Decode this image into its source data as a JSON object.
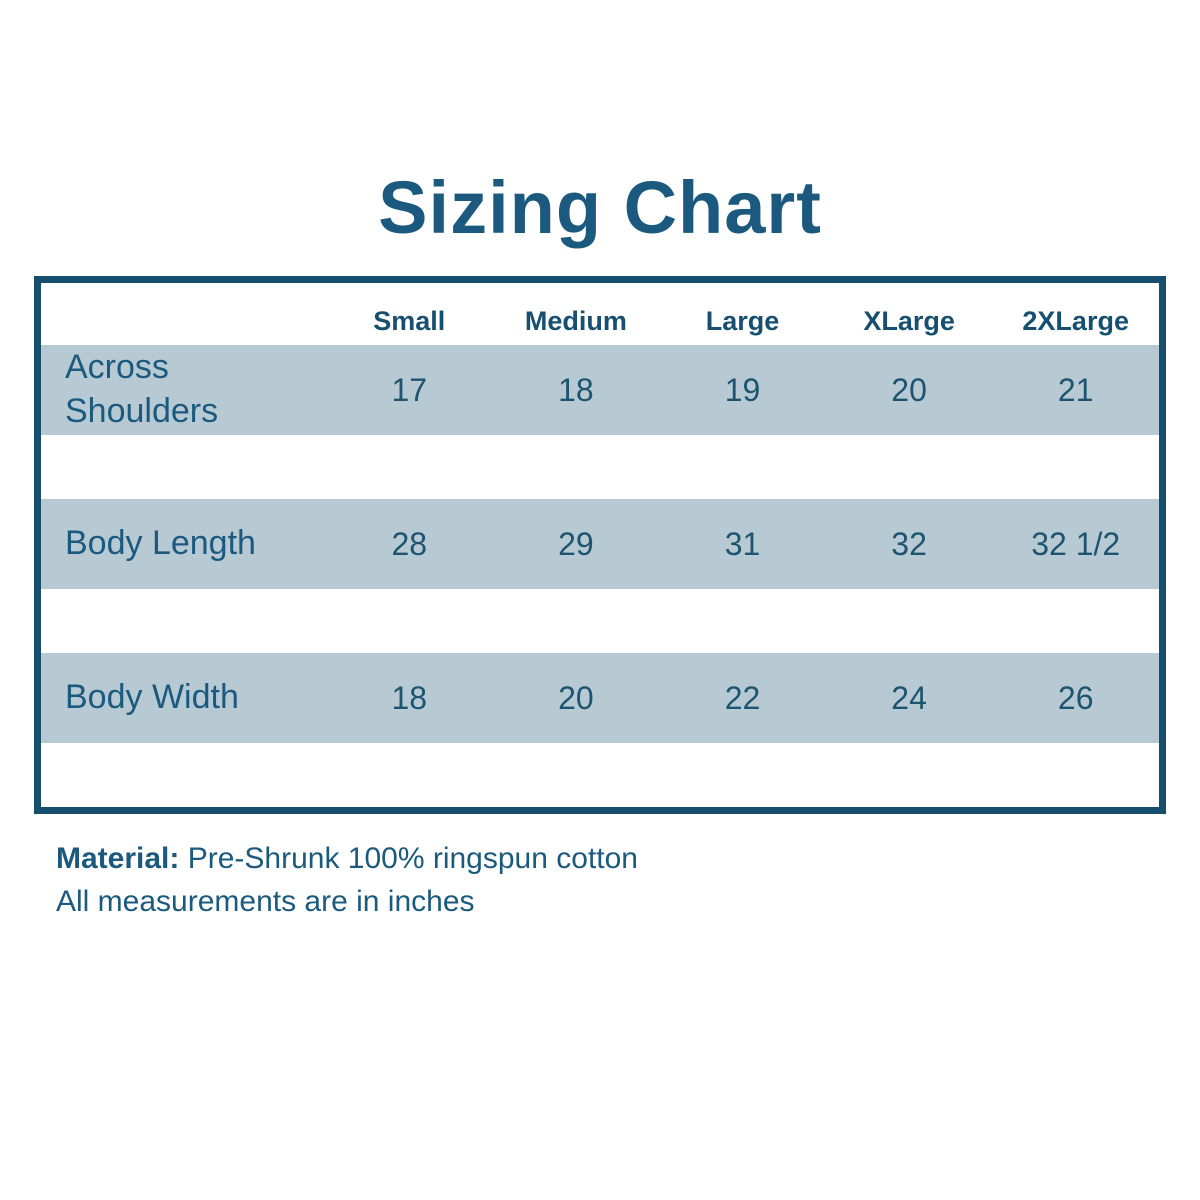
{
  "title": "Sizing Chart",
  "colors": {
    "accent_text": "#1b5a7e",
    "table_border": "#164e6d",
    "row_background": "#b7cad4",
    "page_background": "#ffffff"
  },
  "table": {
    "columns": [
      "Small",
      "Medium",
      "Large",
      "XLarge",
      "2XLarge"
    ],
    "rows": [
      {
        "label": "Across Shoulders",
        "values": [
          "17",
          "18",
          "19",
          "20",
          "21"
        ]
      },
      {
        "label": "Body Length",
        "values": [
          "28",
          "29",
          "31",
          "32",
          "32 1/2"
        ]
      },
      {
        "label": "Body Width",
        "values": [
          "18",
          "20",
          "22",
          "24",
          "26"
        ]
      }
    ]
  },
  "footer": {
    "material_label": "Material:",
    "material_value": "Pre-Shrunk 100% ringspun cotton",
    "note": "All measurements are in inches"
  },
  "chart_data": {
    "type": "table",
    "title": "Sizing Chart",
    "columns": [
      "",
      "Small",
      "Medium",
      "Large",
      "XLarge",
      "2XLarge"
    ],
    "rows": [
      [
        "Across Shoulders",
        17,
        18,
        19,
        20,
        21
      ],
      [
        "Body Length",
        28,
        29,
        31,
        32,
        "32 1/2"
      ],
      [
        "Body Width",
        18,
        20,
        22,
        24,
        26
      ]
    ],
    "notes": [
      "Material: Pre-Shrunk 100% ringspun cotton",
      "All measurements are in inches"
    ],
    "layout_hints": {
      "banded_rows": true,
      "band_color": "#b7cad4",
      "units": "inches"
    }
  }
}
